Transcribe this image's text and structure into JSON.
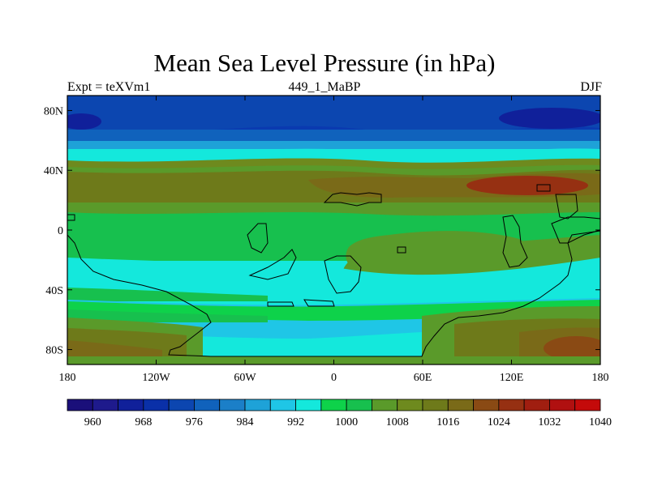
{
  "title": "Mean Sea Level Pressure (in hPa)",
  "subtitle_left": "Expt = teXVm1",
  "subtitle_center": "449_1_MaBP",
  "subtitle_right": "DJF",
  "lon_ticks": [
    {
      "value": -180,
      "label": "180"
    },
    {
      "value": -120,
      "label": "120W"
    },
    {
      "value": -60,
      "label": "60W"
    },
    {
      "value": 0,
      "label": "0"
    },
    {
      "value": 60,
      "label": "60E"
    },
    {
      "value": 120,
      "label": "120E"
    },
    {
      "value": 180,
      "label": "180"
    }
  ],
  "lat_ticks": [
    {
      "value": 80,
      "label": "80N"
    },
    {
      "value": 40,
      "label": "40N"
    },
    {
      "value": 0,
      "label": "0"
    },
    {
      "value": -40,
      "label": "40S"
    },
    {
      "value": -80,
      "label": "80S"
    }
  ],
  "lat_range": [
    -90,
    90
  ],
  "lon_range": [
    -180,
    180
  ],
  "colorbar": {
    "colors": [
      "#1a0f7a",
      "#1e1a8c",
      "#10209a",
      "#0a30a8",
      "#0c46b0",
      "#1062bc",
      "#1b7fc8",
      "#1ea2d8",
      "#1fc6e6",
      "#14e8dc",
      "#0ed24a",
      "#17c04e",
      "#5a9a2a",
      "#6e8a1e",
      "#6e7a1a",
      "#7a6a18",
      "#8a4a14",
      "#963012",
      "#a01e10",
      "#b01010",
      "#c40a0a"
    ],
    "labels": [
      {
        "index": 1,
        "text": "960"
      },
      {
        "index": 3,
        "text": "968"
      },
      {
        "index": 5,
        "text": "976"
      },
      {
        "index": 7,
        "text": "984"
      },
      {
        "index": 9,
        "text": "992"
      },
      {
        "index": 11,
        "text": "1000"
      },
      {
        "index": 13,
        "text": "1008"
      },
      {
        "index": 15,
        "text": "1016"
      },
      {
        "index": 17,
        "text": "1024"
      },
      {
        "index": 19,
        "text": "1032"
      },
      {
        "index": 21,
        "text": "1040"
      }
    ]
  }
}
